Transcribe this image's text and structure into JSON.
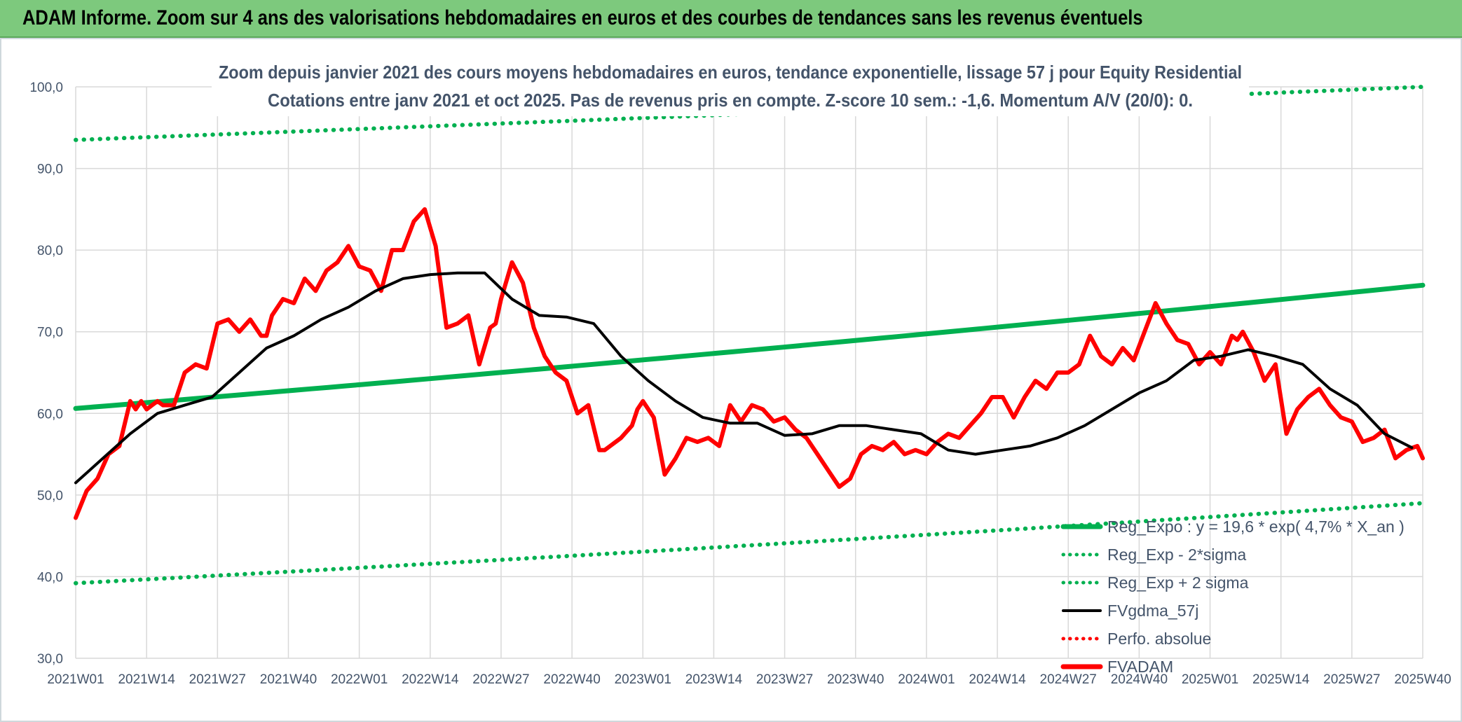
{
  "header": {
    "title": "ADAM Informe. Zoom sur 4 ans des valorisations hebdomadaires en euros et des courbes de tendances sans les revenus éventuels"
  },
  "chart_data": {
    "type": "line",
    "title": "Zoom depuis janvier 2021 des cours moyens hebdomadaires en euros, tendance exponentielle, lissage 57 j pour Equity Residential",
    "subtitle": "Cotations entre janv 2021 et oct 2025. Pas de revenus pris en compte. Z-score 10 sem.: -1,6. Momentum A/V (20/0): 0.",
    "x_tick_labels": [
      "2021W01",
      "2021W14",
      "2021W27",
      "2021W40",
      "2022W01",
      "2022W14",
      "2022W27",
      "2022W40",
      "2023W01",
      "2023W14",
      "2023W27",
      "2023W40",
      "2024W01",
      "2024W14",
      "2024W27",
      "2024W40",
      "2025W01",
      "2025W14",
      "2025W27",
      "2025W40"
    ],
    "x_range": [
      0,
      247
    ],
    "ylim": [
      30,
      100
    ],
    "y_ticks": [
      30,
      40,
      50,
      60,
      70,
      80,
      90,
      100
    ],
    "y_tick_labels": [
      "30,0",
      "40,0",
      "50,0",
      "60,0",
      "70,0",
      "80,0",
      "90,0",
      "100,0"
    ],
    "grid": true,
    "legend_position": "bottom-right",
    "colors": {
      "regression": "#00b050",
      "smooth": "#000000",
      "price": "#ff0000",
      "axis_text": "#44546a",
      "grid": "#d9d9d9",
      "header_bg": "#7dc97d"
    },
    "legend": [
      {
        "key": "reg",
        "label": "Reg_Expo : y = 19,6 * exp( 4,7% *  X_an )",
        "color": "#00b050",
        "style": "solid"
      },
      {
        "key": "lower",
        "label": "Reg_Exp - 2*sigma",
        "color": "#00b050",
        "style": "dotted"
      },
      {
        "key": "upper",
        "label": "Reg_Exp + 2 sigma",
        "color": "#00b050",
        "style": "dotted"
      },
      {
        "key": "smooth",
        "label": "FVgdma_57j",
        "color": "#000000",
        "style": "solid"
      },
      {
        "key": "perf",
        "label": "Perfo. absolue",
        "color": "#ff0000",
        "style": "dotted"
      },
      {
        "key": "price",
        "label": "FVADAM",
        "color": "#ff0000",
        "style": "solid-thick"
      }
    ],
    "series": [
      {
        "name": "Reg_Expo",
        "start": 60.6,
        "end": 75.7
      },
      {
        "name": "Reg_Exp - 2*sigma",
        "start": 39.2,
        "end": 49.0
      },
      {
        "name": "Reg_Exp + 2 sigma",
        "start": 93.5,
        "end": 100.0,
        "clipped_at_top": true
      },
      {
        "name": "FVgdma_57j",
        "x": [
          0,
          5,
          10,
          15,
          20,
          25,
          30,
          35,
          40,
          45,
          50,
          55,
          60,
          65,
          70,
          75,
          80,
          85,
          90,
          95,
          100,
          105,
          110,
          115,
          120,
          125,
          130,
          135,
          140,
          145,
          150,
          155,
          160,
          165,
          170,
          175,
          180,
          185,
          190,
          195,
          200,
          205,
          210,
          215,
          220,
          225,
          230,
          235,
          240,
          245
        ],
        "y": [
          51.5,
          54.5,
          57.5,
          60.0,
          61.0,
          62.0,
          65.0,
          68.0,
          69.5,
          71.5,
          73.0,
          75.0,
          76.5,
          77.0,
          77.2,
          77.2,
          74.0,
          72.0,
          71.8,
          71.0,
          67.0,
          64.0,
          61.5,
          59.5,
          58.8,
          58.8,
          57.3,
          57.5,
          58.5,
          58.5,
          58.0,
          57.5,
          55.5,
          55.0,
          55.5,
          56.0,
          57.0,
          58.5,
          60.5,
          62.5,
          64.0,
          66.5,
          67.0,
          67.8,
          67.0,
          66.0,
          63.0,
          61.0,
          57.5,
          55.8
        ]
      },
      {
        "name": "FVADAM",
        "x": [
          0,
          2,
          4,
          6,
          8,
          10,
          11,
          12,
          13,
          14,
          15,
          16,
          18,
          20,
          22,
          24,
          26,
          28,
          30,
          32,
          34,
          35,
          36,
          38,
          40,
          42,
          44,
          46,
          48,
          50,
          52,
          54,
          56,
          58,
          60,
          62,
          64,
          66,
          68,
          70,
          72,
          74,
          76,
          77,
          78,
          80,
          82,
          84,
          86,
          88,
          90,
          92,
          94,
          96,
          97,
          98,
          100,
          102,
          103,
          104,
          106,
          108,
          110,
          112,
          114,
          116,
          118,
          120,
          122,
          124,
          126,
          128,
          130,
          132,
          134,
          136,
          138,
          140,
          142,
          144,
          146,
          148,
          150,
          152,
          154,
          156,
          158,
          160,
          162,
          164,
          166,
          168,
          170,
          172,
          174,
          176,
          178,
          180,
          182,
          184,
          186,
          188,
          190,
          192,
          194,
          196,
          198,
          200,
          202,
          204,
          206,
          208,
          210,
          212,
          213,
          214,
          216,
          218,
          220,
          222,
          224,
          226,
          228,
          230,
          232,
          234,
          236,
          238,
          240,
          242,
          244,
          246,
          247
        ],
        "y": [
          47.2,
          50.5,
          52.0,
          55.0,
          56.0,
          61.5,
          60.5,
          61.5,
          60.5,
          61.0,
          61.5,
          61.0,
          61.0,
          65.0,
          66.0,
          65.5,
          71.0,
          71.5,
          70.0,
          71.5,
          69.5,
          69.5,
          72.0,
          74.0,
          73.5,
          76.5,
          75.0,
          77.5,
          78.5,
          80.5,
          78.0,
          77.5,
          75.0,
          80.0,
          80.0,
          83.5,
          85.0,
          80.5,
          70.5,
          71.0,
          72.0,
          66.0,
          70.5,
          71.0,
          74.0,
          78.5,
          76.0,
          70.5,
          67.0,
          65.0,
          64.0,
          60.0,
          61.0,
          55.5,
          55.5,
          56.0,
          57.0,
          58.5,
          60.5,
          61.5,
          59.5,
          52.5,
          54.5,
          57.0,
          56.5,
          57.0,
          56.0,
          61.0,
          59.0,
          61.0,
          60.5,
          59.0,
          59.5,
          58.0,
          57.0,
          55.0,
          53.0,
          51.0,
          52.0,
          55.0,
          56.0,
          55.5,
          56.5,
          55.0,
          55.5,
          55.0,
          56.5,
          57.5,
          57.0,
          58.5,
          60.0,
          62.0,
          62.0,
          59.5,
          62.0,
          64.0,
          63.0,
          65.0,
          65.0,
          66.0,
          69.5,
          67.0,
          66.0,
          68.0,
          66.5,
          70.0,
          73.5,
          71.0,
          69.0,
          68.5,
          66.0,
          67.5,
          66.0,
          69.5,
          69.0,
          70.0,
          67.5,
          64.0,
          66.0,
          57.5,
          60.5,
          62.0,
          63.0,
          61.0,
          59.5,
          59.0,
          56.5,
          57.0,
          58.0,
          54.5,
          55.5,
          56.0,
          54.5
        ]
      }
    ]
  }
}
